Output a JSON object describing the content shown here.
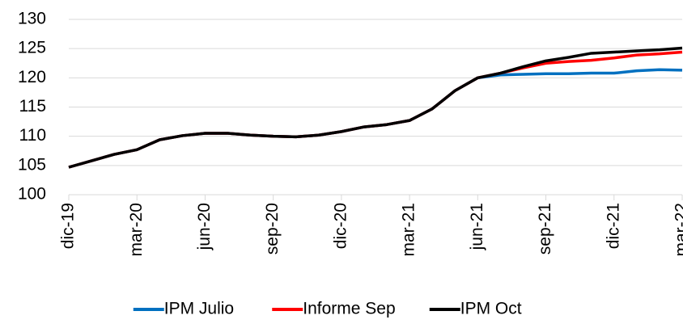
{
  "chart_data": {
    "type": "line",
    "categories": [
      "dic-19",
      null,
      null,
      "mar-20",
      null,
      null,
      "jun-20",
      null,
      null,
      "sep-20",
      null,
      null,
      "dic-20",
      null,
      null,
      "mar-21",
      null,
      null,
      "jun-21",
      null,
      null,
      "sep-21",
      null,
      null,
      "dic-21",
      null,
      null,
      "mar-22"
    ],
    "series": [
      {
        "name": "IPM Julio",
        "color": "#0070c0",
        "values": [
          104.7,
          105.8,
          106.9,
          107.7,
          109.4,
          110.1,
          110.5,
          110.5,
          110.2,
          110.0,
          109.9,
          110.2,
          110.8,
          111.6,
          112.0,
          112.7,
          114.7,
          117.8,
          120.0,
          120.5,
          120.6,
          120.7,
          120.7,
          120.8,
          120.8,
          121.2,
          121.4,
          121.3
        ]
      },
      {
        "name": "Informe Sep",
        "color": "#ff0000",
        "values": [
          104.7,
          105.8,
          106.9,
          107.7,
          109.4,
          110.1,
          110.5,
          110.5,
          110.2,
          110.0,
          109.9,
          110.2,
          110.8,
          111.6,
          112.0,
          112.7,
          114.7,
          117.8,
          120.0,
          120.8,
          121.7,
          122.5,
          122.8,
          123.0,
          123.4,
          123.9,
          124.1,
          124.4
        ]
      },
      {
        "name": "IPM Oct",
        "color": "#000000",
        "values": [
          104.7,
          105.8,
          106.9,
          107.7,
          109.4,
          110.1,
          110.5,
          110.5,
          110.2,
          110.0,
          109.9,
          110.2,
          110.8,
          111.6,
          112.0,
          112.7,
          114.7,
          117.8,
          120.0,
          120.8,
          121.9,
          122.9,
          123.5,
          124.2,
          124.4,
          124.6,
          124.8,
          125.1
        ]
      }
    ],
    "ylim": [
      100,
      130
    ],
    "yticks": [
      100,
      105,
      110,
      115,
      120,
      125,
      130
    ],
    "grid": true,
    "legend": "bottom"
  }
}
